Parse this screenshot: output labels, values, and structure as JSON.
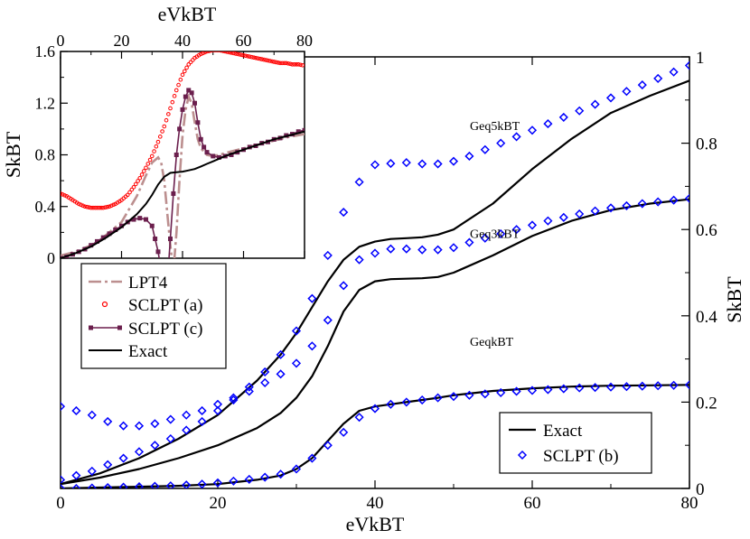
{
  "chart_data": {
    "main": {
      "type": "line",
      "xlabel": "eVkBT",
      "ylabel_right": "SkBT",
      "xlim": [
        0,
        80
      ],
      "ylim": [
        0,
        1
      ],
      "x_ticks": [
        "0",
        "20",
        "40",
        "60",
        "80"
      ],
      "y_ticks_right": [
        "0",
        "0.2",
        "0.4",
        "0.6",
        "0.8",
        "1"
      ],
      "annotations": [
        "Geq5kBT",
        "Geq3kBT",
        "GeqkBT"
      ],
      "legend": {
        "position": "bottom-right",
        "entries": [
          "Exact",
          "SCLPT (b)"
        ]
      },
      "series": [
        {
          "name": "Exact",
          "group": "Geq5kBT",
          "style": "line",
          "color": "#000000",
          "x": [
            0,
            5,
            10,
            15,
            20,
            25,
            28,
            30,
            32,
            34,
            36,
            38,
            40,
            42,
            44,
            46,
            48,
            50,
            55,
            60,
            65,
            70,
            75,
            80
          ],
          "y": [
            0.01,
            0.035,
            0.07,
            0.115,
            0.17,
            0.25,
            0.31,
            0.36,
            0.42,
            0.48,
            0.53,
            0.56,
            0.572,
            0.578,
            0.58,
            0.582,
            0.588,
            0.6,
            0.66,
            0.74,
            0.81,
            0.87,
            0.91,
            0.945
          ]
        },
        {
          "name": "SCLPT (b)",
          "group": "Geq5kBT",
          "style": "diamond",
          "color": "#0000ff",
          "x": [
            0,
            2,
            4,
            6,
            8,
            10,
            12,
            14,
            16,
            18,
            20,
            22,
            24,
            26,
            28,
            30,
            32,
            34,
            36,
            38,
            40,
            42,
            44,
            46,
            48,
            50,
            52,
            54,
            56,
            58,
            60,
            62,
            64,
            66,
            68,
            70,
            72,
            74,
            76,
            78,
            80
          ],
          "y": [
            0.02,
            0.03,
            0.04,
            0.055,
            0.07,
            0.085,
            0.1,
            0.115,
            0.135,
            0.155,
            0.18,
            0.205,
            0.235,
            0.27,
            0.31,
            0.365,
            0.44,
            0.54,
            0.64,
            0.71,
            0.75,
            0.753,
            0.755,
            0.752,
            0.752,
            0.758,
            0.77,
            0.785,
            0.8,
            0.815,
            0.83,
            0.845,
            0.86,
            0.875,
            0.89,
            0.905,
            0.92,
            0.935,
            0.95,
            0.965,
            0.98
          ]
        },
        {
          "name": "Exact",
          "group": "Geq3kBT",
          "style": "line",
          "color": "#000000",
          "x": [
            0,
            5,
            10,
            15,
            20,
            25,
            28,
            30,
            32,
            34,
            36,
            38,
            40,
            42,
            44,
            46,
            48,
            50,
            55,
            60,
            65,
            70,
            75,
            80
          ],
          "y": [
            0.01,
            0.025,
            0.045,
            0.07,
            0.1,
            0.14,
            0.175,
            0.21,
            0.26,
            0.33,
            0.41,
            0.46,
            0.48,
            0.485,
            0.486,
            0.487,
            0.49,
            0.5,
            0.54,
            0.585,
            0.62,
            0.645,
            0.66,
            0.67
          ]
        },
        {
          "name": "SCLPT (b)",
          "group": "Geq3kBT",
          "style": "diamond",
          "color": "#0000ff",
          "x": [
            0,
            2,
            4,
            6,
            8,
            10,
            12,
            14,
            16,
            18,
            20,
            22,
            24,
            26,
            28,
            30,
            32,
            34,
            36,
            38,
            40,
            42,
            44,
            46,
            48,
            50,
            52,
            54,
            56,
            58,
            60,
            62,
            64,
            66,
            68,
            70,
            72,
            74,
            76,
            78,
            80
          ],
          "y": [
            0.19,
            0.18,
            0.17,
            0.155,
            0.145,
            0.145,
            0.15,
            0.16,
            0.17,
            0.18,
            0.195,
            0.21,
            0.225,
            0.245,
            0.265,
            0.29,
            0.33,
            0.39,
            0.47,
            0.53,
            0.545,
            0.555,
            0.555,
            0.553,
            0.553,
            0.558,
            0.57,
            0.58,
            0.59,
            0.6,
            0.61,
            0.62,
            0.628,
            0.636,
            0.643,
            0.65,
            0.655,
            0.66,
            0.664,
            0.668,
            0.672
          ]
        },
        {
          "name": "Exact",
          "group": "GeqkBT",
          "style": "line",
          "color": "#000000",
          "x": [
            0,
            5,
            10,
            15,
            20,
            25,
            28,
            30,
            32,
            34,
            36,
            38,
            40,
            42,
            44,
            46,
            48,
            50,
            55,
            60,
            65,
            70,
            75,
            80
          ],
          "y": [
            0.0,
            0.002,
            0.004,
            0.006,
            0.01,
            0.02,
            0.03,
            0.045,
            0.07,
            0.11,
            0.15,
            0.18,
            0.19,
            0.195,
            0.2,
            0.205,
            0.21,
            0.216,
            0.226,
            0.232,
            0.236,
            0.238,
            0.239,
            0.24
          ]
        },
        {
          "name": "SCLPT (b)",
          "group": "GeqkBT",
          "style": "diamond",
          "color": "#0000ff",
          "x": [
            0,
            2,
            4,
            6,
            8,
            10,
            12,
            14,
            16,
            18,
            20,
            22,
            24,
            26,
            28,
            30,
            32,
            34,
            36,
            38,
            40,
            42,
            44,
            46,
            48,
            50,
            52,
            54,
            56,
            58,
            60,
            62,
            64,
            66,
            68,
            70,
            72,
            74,
            76,
            78,
            80
          ],
          "y": [
            0.0,
            0.0,
            0.001,
            0.002,
            0.003,
            0.004,
            0.005,
            0.006,
            0.008,
            0.01,
            0.013,
            0.017,
            0.021,
            0.026,
            0.033,
            0.045,
            0.07,
            0.1,
            0.13,
            0.165,
            0.185,
            0.195,
            0.2,
            0.205,
            0.21,
            0.213,
            0.216,
            0.219,
            0.222,
            0.225,
            0.227,
            0.229,
            0.231,
            0.233,
            0.234,
            0.235,
            0.236,
            0.237,
            0.238,
            0.239,
            0.24
          ]
        }
      ]
    },
    "inset": {
      "type": "line",
      "xlabel": "eVkBT",
      "ylabel": "SkBT",
      "xlim": [
        0,
        80
      ],
      "ylim": [
        0,
        1.6
      ],
      "x_ticks": [
        "0",
        "20",
        "40",
        "60",
        "80"
      ],
      "y_ticks": [
        "0",
        "0.4",
        "0.8",
        "1.2",
        "1.6"
      ],
      "legend": {
        "position": "bottom-left",
        "entries": [
          "LPT4",
          "SCLPT (a)",
          "SCLPT (c)",
          "Exact"
        ]
      },
      "series": [
        {
          "name": "LPT4",
          "style": "dashdot",
          "color": "#bc8f8f",
          "x": [
            0,
            5,
            10,
            15,
            20,
            25,
            28,
            30,
            32,
            33,
            34,
            35,
            36,
            37,
            38,
            39,
            40,
            41,
            42,
            43,
            44,
            45,
            46,
            48,
            50,
            52,
            55,
            60,
            65,
            70,
            75,
            80
          ],
          "y": [
            0.02,
            0.05,
            0.1,
            0.18,
            0.28,
            0.48,
            0.64,
            0.74,
            0.78,
            0.74,
            0.6,
            0.35,
            0.1,
            -0.1,
            0.2,
            0.6,
            0.95,
            1.15,
            1.25,
            1.2,
            1.05,
            0.92,
            0.85,
            0.8,
            0.79,
            0.8,
            0.82,
            0.85,
            0.88,
            0.91,
            0.94,
            0.96
          ]
        },
        {
          "name": "SCLPT (a)",
          "style": "circle",
          "color": "#ff0000",
          "x": [
            0,
            2,
            4,
            6,
            8,
            10,
            12,
            14,
            16,
            18,
            20,
            22,
            24,
            26,
            28,
            30,
            32,
            34,
            36,
            38,
            40,
            42,
            44,
            46,
            48,
            50,
            52,
            54,
            56,
            58,
            60,
            62,
            64,
            66,
            68,
            70,
            72,
            74,
            76,
            78,
            80
          ],
          "y": [
            0.5,
            0.48,
            0.45,
            0.42,
            0.4,
            0.39,
            0.39,
            0.39,
            0.4,
            0.42,
            0.45,
            0.49,
            0.55,
            0.62,
            0.7,
            0.79,
            0.9,
            1.02,
            1.16,
            1.3,
            1.42,
            1.5,
            1.55,
            1.58,
            1.6,
            1.61,
            1.61,
            1.6,
            1.59,
            1.58,
            1.57,
            1.56,
            1.55,
            1.54,
            1.53,
            1.52,
            1.51,
            1.51,
            1.5,
            1.5,
            1.49
          ]
        },
        {
          "name": "SCLPT (c)",
          "style": "square-line",
          "color": "#6b1f4d",
          "x": [
            0,
            2,
            4,
            6,
            8,
            10,
            12,
            14,
            16,
            18,
            20,
            22,
            24,
            26,
            28,
            30,
            31,
            32,
            33,
            34,
            35,
            36,
            37,
            38,
            39,
            40,
            41,
            42,
            43,
            44,
            45,
            46,
            47,
            48,
            50,
            52,
            54,
            56,
            58,
            60,
            62,
            64,
            66,
            68,
            70,
            72,
            74,
            76,
            78,
            80
          ],
          "y": [
            0.0,
            0.01,
            0.03,
            0.05,
            0.07,
            0.1,
            0.13,
            0.16,
            0.19,
            0.22,
            0.25,
            0.28,
            0.3,
            0.31,
            0.3,
            0.25,
            0.15,
            0.05,
            -0.1,
            -0.3,
            -0.2,
            0.15,
            0.5,
            0.8,
            1.0,
            1.15,
            1.25,
            1.3,
            1.28,
            1.2,
            1.05,
            0.92,
            0.86,
            0.82,
            0.79,
            0.78,
            0.79,
            0.8,
            0.82,
            0.84,
            0.86,
            0.87,
            0.89,
            0.9,
            0.92,
            0.93,
            0.95,
            0.96,
            0.98,
            0.99
          ]
        },
        {
          "name": "Exact",
          "style": "line",
          "color": "#000000",
          "x": [
            0,
            5,
            10,
            15,
            20,
            25,
            28,
            30,
            32,
            34,
            36,
            38,
            40,
            42,
            44,
            46,
            48,
            50,
            55,
            60,
            65,
            70,
            75,
            80
          ],
          "y": [
            0.0,
            0.04,
            0.09,
            0.16,
            0.24,
            0.34,
            0.42,
            0.49,
            0.57,
            0.63,
            0.66,
            0.665,
            0.67,
            0.68,
            0.69,
            0.71,
            0.73,
            0.75,
            0.8,
            0.84,
            0.88,
            0.92,
            0.95,
            0.98
          ]
        }
      ]
    }
  }
}
